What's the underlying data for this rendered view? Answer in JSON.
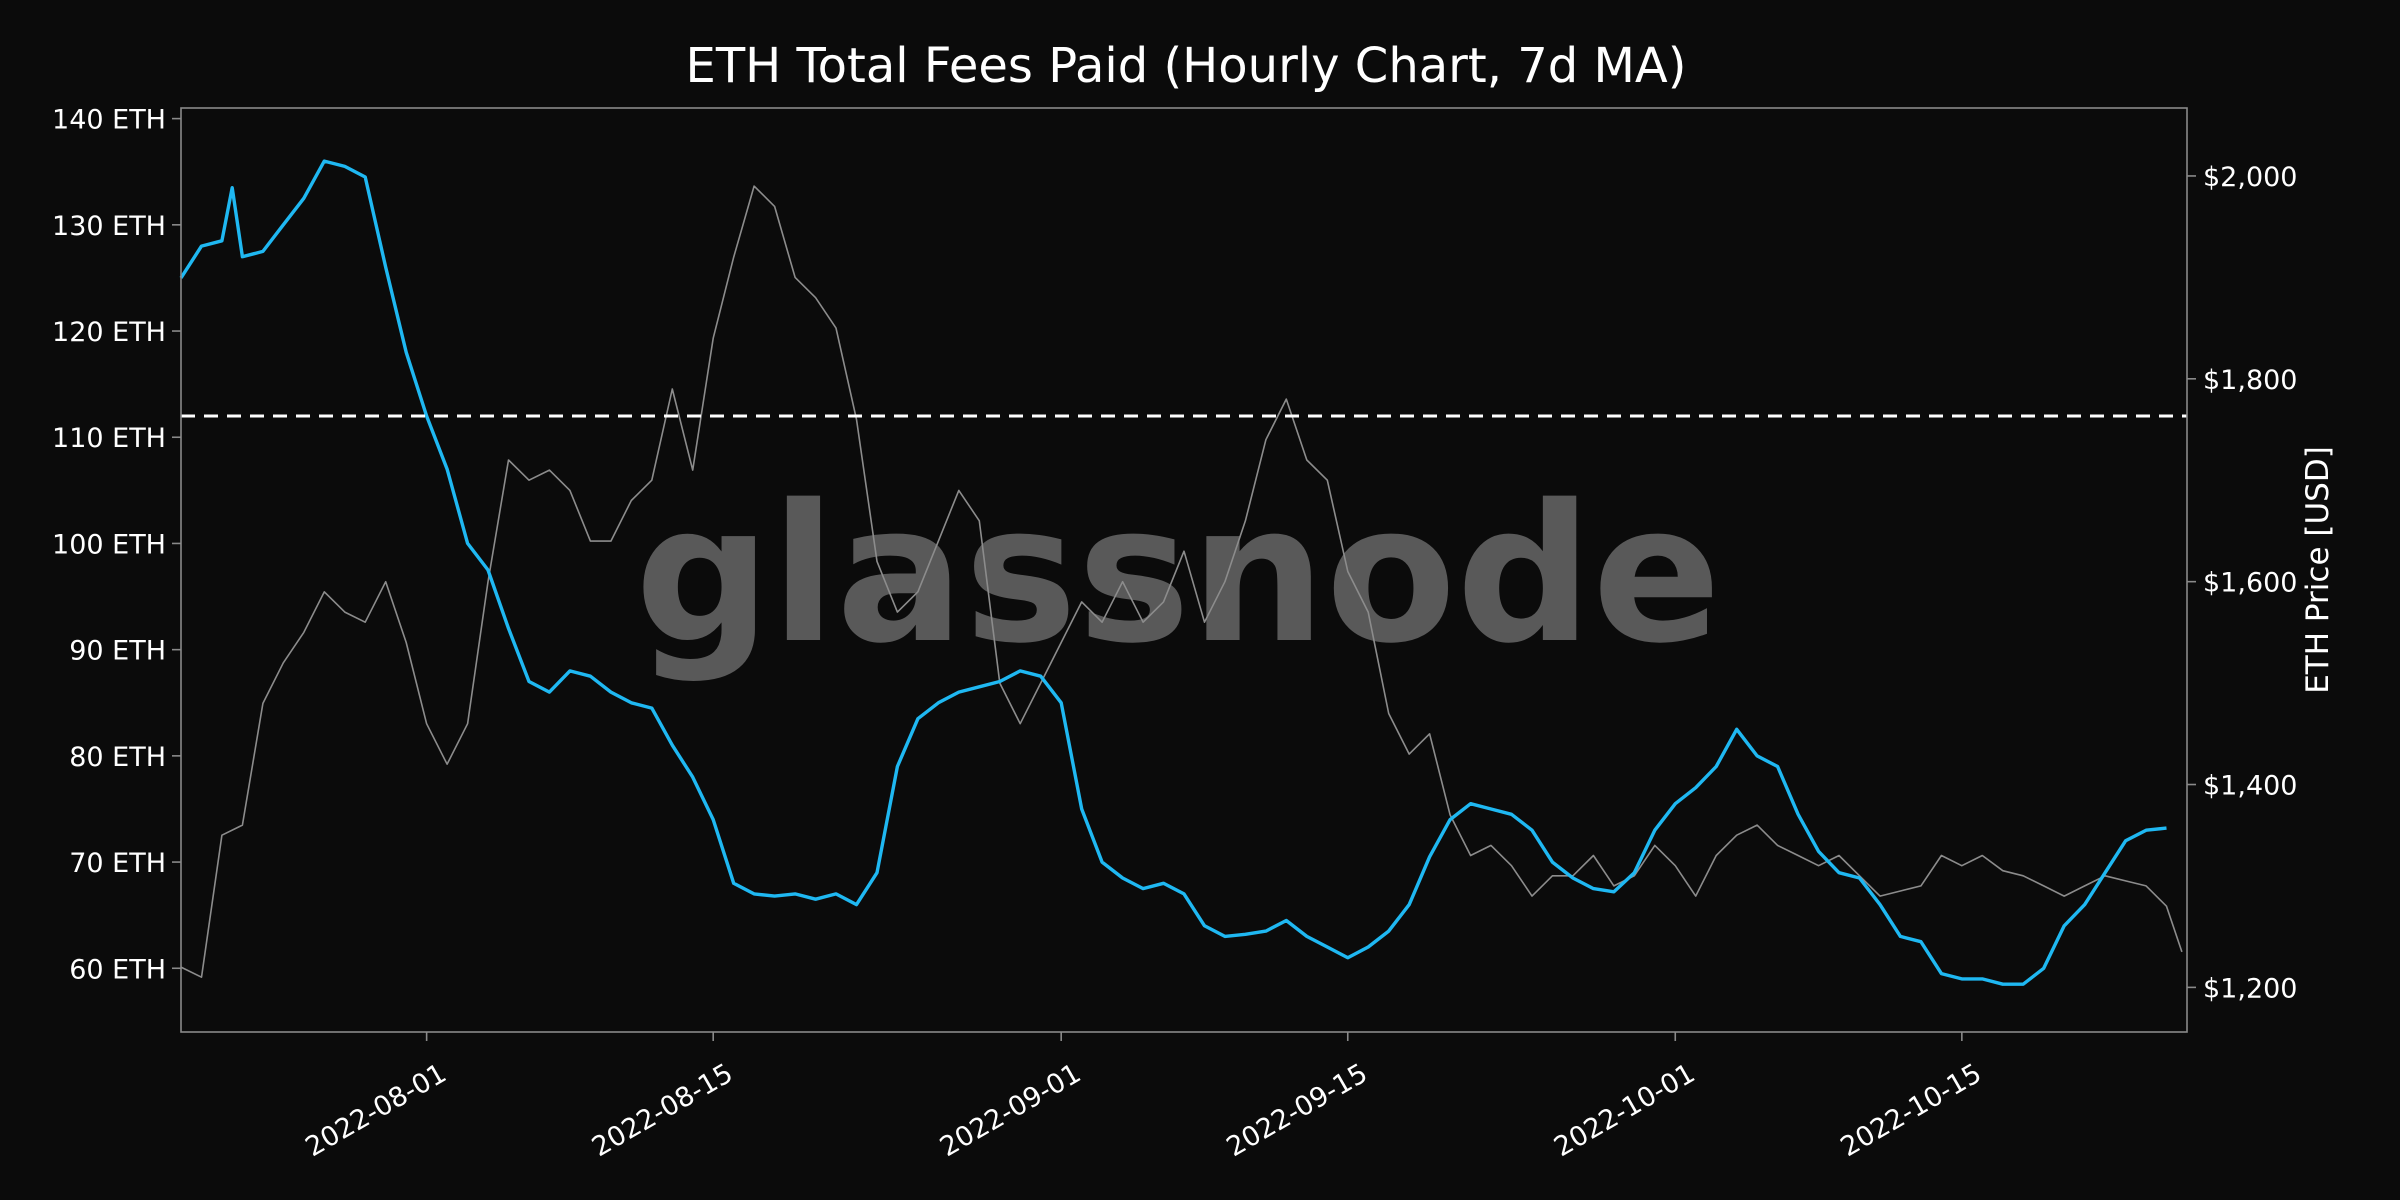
{
  "chart_data": {
    "type": "line",
    "title": "ETH Total Fees Paid (Hourly Chart, 7d MA)",
    "watermark": "glassnode",
    "y_left": {
      "unit_suffix": " ETH",
      "ticks": [
        60,
        70,
        80,
        90,
        100,
        110,
        120,
        130,
        140
      ],
      "tick_labels": [
        "60 ETH",
        "70 ETH",
        "80 ETH",
        "90 ETH",
        "100 ETH",
        "110 ETH",
        "120 ETH",
        "130 ETH",
        "140 ETH"
      ],
      "ylim": [
        54,
        141
      ]
    },
    "y_right": {
      "label": "ETH Price [USD]",
      "ticks": [
        1200,
        1400,
        1600,
        1800,
        2000
      ],
      "tick_labels": [
        "$1,200",
        "$1,400",
        "$1,600",
        "$1,800",
        "$2,000"
      ],
      "ylim": [
        1156,
        2067
      ]
    },
    "x": {
      "type": "date",
      "xlim": [
        "2022-07-20",
        "2022-10-26"
      ],
      "tick_dates": [
        "2022-08-01",
        "2022-08-15",
        "2022-09-01",
        "2022-09-15",
        "2022-10-01",
        "2022-10-15"
      ],
      "tick_labels": [
        "2022-08-01",
        "2022-08-15",
        "2022-09-01",
        "2022-09-15",
        "2022-10-01",
        "2022-10-15"
      ]
    },
    "reference_line": {
      "axis": "left",
      "value": 112,
      "style": "dashed",
      "color": "#ffffff"
    },
    "series": [
      {
        "axis": "left",
        "color": "#1fb8f2",
        "points": [
          [
            "2022-07-20",
            125
          ],
          [
            "2022-07-21",
            128
          ],
          [
            "2022-07-22",
            128.5
          ],
          [
            "2022-07-22T12",
            133.5
          ],
          [
            "2022-07-23",
            127
          ],
          [
            "2022-07-24",
            127.5
          ],
          [
            "2022-07-25",
            130
          ],
          [
            "2022-07-26",
            132.5
          ],
          [
            "2022-07-27",
            136
          ],
          [
            "2022-07-28",
            135.5
          ],
          [
            "2022-07-29",
            134.5
          ],
          [
            "2022-07-30",
            126
          ],
          [
            "2022-07-31",
            118
          ],
          [
            "2022-08-01",
            112
          ],
          [
            "2022-08-02",
            107
          ],
          [
            "2022-08-03",
            100
          ],
          [
            "2022-08-04",
            97.5
          ],
          [
            "2022-08-05",
            92
          ],
          [
            "2022-08-06",
            87
          ],
          [
            "2022-08-07",
            86
          ],
          [
            "2022-08-08",
            88
          ],
          [
            "2022-08-09",
            87.5
          ],
          [
            "2022-08-10",
            86
          ],
          [
            "2022-08-11",
            85
          ],
          [
            "2022-08-12",
            84.5
          ],
          [
            "2022-08-13",
            81
          ],
          [
            "2022-08-14",
            78
          ],
          [
            "2022-08-15",
            74
          ],
          [
            "2022-08-16",
            68
          ],
          [
            "2022-08-17",
            67
          ],
          [
            "2022-08-18",
            66.8
          ],
          [
            "2022-08-19",
            67
          ],
          [
            "2022-08-20",
            66.5
          ],
          [
            "2022-08-21",
            67
          ],
          [
            "2022-08-22",
            66
          ],
          [
            "2022-08-23",
            69
          ],
          [
            "2022-08-24",
            79
          ],
          [
            "2022-08-25",
            83.5
          ],
          [
            "2022-08-26",
            85
          ],
          [
            "2022-08-27",
            86
          ],
          [
            "2022-08-28",
            86.5
          ],
          [
            "2022-08-29",
            87
          ],
          [
            "2022-08-30",
            88
          ],
          [
            "2022-08-31",
            87.5
          ],
          [
            "2022-09-01",
            85
          ],
          [
            "2022-09-02",
            75
          ],
          [
            "2022-09-03",
            70
          ],
          [
            "2022-09-04",
            68.5
          ],
          [
            "2022-09-05",
            67.5
          ],
          [
            "2022-09-06",
            68
          ],
          [
            "2022-09-07",
            67
          ],
          [
            "2022-09-08",
            64
          ],
          [
            "2022-09-09",
            63
          ],
          [
            "2022-09-10",
            63.2
          ],
          [
            "2022-09-11",
            63.5
          ],
          [
            "2022-09-12",
            64.5
          ],
          [
            "2022-09-13",
            63
          ],
          [
            "2022-09-14",
            62
          ],
          [
            "2022-09-15",
            61
          ],
          [
            "2022-09-16",
            62
          ],
          [
            "2022-09-17",
            63.5
          ],
          [
            "2022-09-18",
            66
          ],
          [
            "2022-09-19",
            70.5
          ],
          [
            "2022-09-20",
            74
          ],
          [
            "2022-09-21",
            75.5
          ],
          [
            "2022-09-22",
            75
          ],
          [
            "2022-09-23",
            74.5
          ],
          [
            "2022-09-24",
            73
          ],
          [
            "2022-09-25",
            70
          ],
          [
            "2022-09-26",
            68.5
          ],
          [
            "2022-09-27",
            67.5
          ],
          [
            "2022-09-28",
            67.2
          ],
          [
            "2022-09-29",
            69
          ],
          [
            "2022-09-30",
            73
          ],
          [
            "2022-10-01",
            75.5
          ],
          [
            "2022-10-02",
            77
          ],
          [
            "2022-10-03",
            79
          ],
          [
            "2022-10-04",
            82.5
          ],
          [
            "2022-10-05",
            80
          ],
          [
            "2022-10-06",
            79
          ],
          [
            "2022-10-07",
            74.5
          ],
          [
            "2022-10-08",
            71
          ],
          [
            "2022-10-09",
            69
          ],
          [
            "2022-10-10",
            68.5
          ],
          [
            "2022-10-11",
            66
          ],
          [
            "2022-10-12",
            63
          ],
          [
            "2022-10-13",
            62.5
          ],
          [
            "2022-10-14",
            59.5
          ],
          [
            "2022-10-15",
            59
          ],
          [
            "2022-10-16",
            59
          ],
          [
            "2022-10-17",
            58.5
          ],
          [
            "2022-10-18",
            58.5
          ],
          [
            "2022-10-19",
            60
          ],
          [
            "2022-10-20",
            64
          ],
          [
            "2022-10-21",
            66
          ],
          [
            "2022-10-22",
            69
          ],
          [
            "2022-10-23",
            72
          ],
          [
            "2022-10-24",
            73
          ],
          [
            "2022-10-25",
            73.2
          ]
        ]
      },
      {
        "axis": "right",
        "color": "#8c8c8c",
        "points": [
          [
            "2022-07-20",
            1220
          ],
          [
            "2022-07-21",
            1210
          ],
          [
            "2022-07-22",
            1350
          ],
          [
            "2022-07-23",
            1360
          ],
          [
            "2022-07-24",
            1480
          ],
          [
            "2022-07-25",
            1520
          ],
          [
            "2022-07-26",
            1550
          ],
          [
            "2022-07-27",
            1590
          ],
          [
            "2022-07-28",
            1570
          ],
          [
            "2022-07-29",
            1560
          ],
          [
            "2022-07-30",
            1600
          ],
          [
            "2022-07-31",
            1540
          ],
          [
            "2022-08-01",
            1460
          ],
          [
            "2022-08-02",
            1420
          ],
          [
            "2022-08-03",
            1460
          ],
          [
            "2022-08-04",
            1600
          ],
          [
            "2022-08-05",
            1720
          ],
          [
            "2022-08-06",
            1700
          ],
          [
            "2022-08-07",
            1710
          ],
          [
            "2022-08-08",
            1690
          ],
          [
            "2022-08-09",
            1640
          ],
          [
            "2022-08-10",
            1640
          ],
          [
            "2022-08-11",
            1680
          ],
          [
            "2022-08-12",
            1700
          ],
          [
            "2022-08-13",
            1790
          ],
          [
            "2022-08-14",
            1710
          ],
          [
            "2022-08-15",
            1840
          ],
          [
            "2022-08-16",
            1920
          ],
          [
            "2022-08-17",
            1990
          ],
          [
            "2022-08-18",
            1970
          ],
          [
            "2022-08-19",
            1900
          ],
          [
            "2022-08-20",
            1880
          ],
          [
            "2022-08-21",
            1850
          ],
          [
            "2022-08-22",
            1760
          ],
          [
            "2022-08-23",
            1620
          ],
          [
            "2022-08-24",
            1570
          ],
          [
            "2022-08-25",
            1590
          ],
          [
            "2022-08-26",
            1640
          ],
          [
            "2022-08-27",
            1690
          ],
          [
            "2022-08-28",
            1660
          ],
          [
            "2022-08-29",
            1500
          ],
          [
            "2022-08-30",
            1460
          ],
          [
            "2022-08-31",
            1500
          ],
          [
            "2022-09-01",
            1540
          ],
          [
            "2022-09-02",
            1580
          ],
          [
            "2022-09-03",
            1560
          ],
          [
            "2022-09-04",
            1600
          ],
          [
            "2022-09-05",
            1560
          ],
          [
            "2022-09-06",
            1580
          ],
          [
            "2022-09-07",
            1630
          ],
          [
            "2022-09-08",
            1560
          ],
          [
            "2022-09-09",
            1600
          ],
          [
            "2022-09-10",
            1660
          ],
          [
            "2022-09-11",
            1740
          ],
          [
            "2022-09-12",
            1780
          ],
          [
            "2022-09-13",
            1720
          ],
          [
            "2022-09-14",
            1700
          ],
          [
            "2022-09-15",
            1610
          ],
          [
            "2022-09-16",
            1570
          ],
          [
            "2022-09-17",
            1470
          ],
          [
            "2022-09-18",
            1430
          ],
          [
            "2022-09-19",
            1450
          ],
          [
            "2022-09-20",
            1370
          ],
          [
            "2022-09-21",
            1330
          ],
          [
            "2022-09-22",
            1340
          ],
          [
            "2022-09-23",
            1320
          ],
          [
            "2022-09-24",
            1290
          ],
          [
            "2022-09-25",
            1310
          ],
          [
            "2022-09-26",
            1310
          ],
          [
            "2022-09-27",
            1330
          ],
          [
            "2022-09-28",
            1300
          ],
          [
            "2022-09-29",
            1310
          ],
          [
            "2022-09-30",
            1340
          ],
          [
            "2022-10-01",
            1320
          ],
          [
            "2022-10-02",
            1290
          ],
          [
            "2022-10-03",
            1330
          ],
          [
            "2022-10-04",
            1350
          ],
          [
            "2022-10-05",
            1360
          ],
          [
            "2022-10-06",
            1340
          ],
          [
            "2022-10-07",
            1330
          ],
          [
            "2022-10-08",
            1320
          ],
          [
            "2022-10-09",
            1330
          ],
          [
            "2022-10-10",
            1310
          ],
          [
            "2022-10-11",
            1290
          ],
          [
            "2022-10-12",
            1295
          ],
          [
            "2022-10-13",
            1300
          ],
          [
            "2022-10-14",
            1330
          ],
          [
            "2022-10-15",
            1320
          ],
          [
            "2022-10-16",
            1330
          ],
          [
            "2022-10-17",
            1315
          ],
          [
            "2022-10-18",
            1310
          ],
          [
            "2022-10-19",
            1300
          ],
          [
            "2022-10-20",
            1290
          ],
          [
            "2022-10-21",
            1300
          ],
          [
            "2022-10-22",
            1310
          ],
          [
            "2022-10-23",
            1305
          ],
          [
            "2022-10-24",
            1300
          ],
          [
            "2022-10-25",
            1280
          ],
          [
            "2022-10-25T18",
            1235
          ]
        ]
      }
    ],
    "grid": false,
    "legend": "none",
    "background": "#0b0b0b",
    "frame_color": "#8a8a8a"
  }
}
